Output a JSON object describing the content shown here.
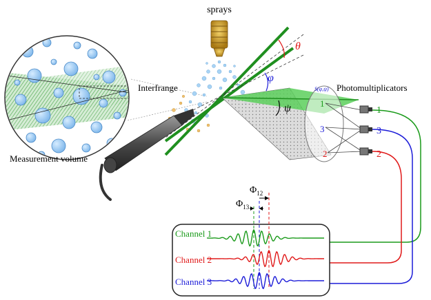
{
  "labels": {
    "sprays": "sprays",
    "interfrange": "Interfrange",
    "photomultiplicators": "Photomultiplicators",
    "measurement_volume": "Measurement volume",
    "theta": "θ",
    "phi": "φ",
    "psi": "ψ",
    "detector_formula": "S(φ,ψ)",
    "phi12": "Φ",
    "phi12_sub": "12",
    "phi13": "Φ",
    "phi13_sub": "13"
  },
  "detectors": [
    {
      "id": "1",
      "color": "#1a9a1a"
    },
    {
      "id": "2",
      "color": "#e01818"
    },
    {
      "id": "3",
      "color": "#1c1cd8"
    }
  ],
  "aperture_numbers": [
    "1",
    "3",
    "2"
  ],
  "channels": [
    {
      "label": "Channel 1",
      "color": "#1a9a1a"
    },
    {
      "label": "Channel 2",
      "color": "#e01818"
    },
    {
      "label": "Channel 3",
      "color": "#1c1cd8"
    }
  ],
  "colors": {
    "beam": "#2aa02a",
    "droplet": "#8cc4f0",
    "droplet_edge": "#4a8ac8",
    "probe": "#555555",
    "nozzle": "#c99a26"
  }
}
